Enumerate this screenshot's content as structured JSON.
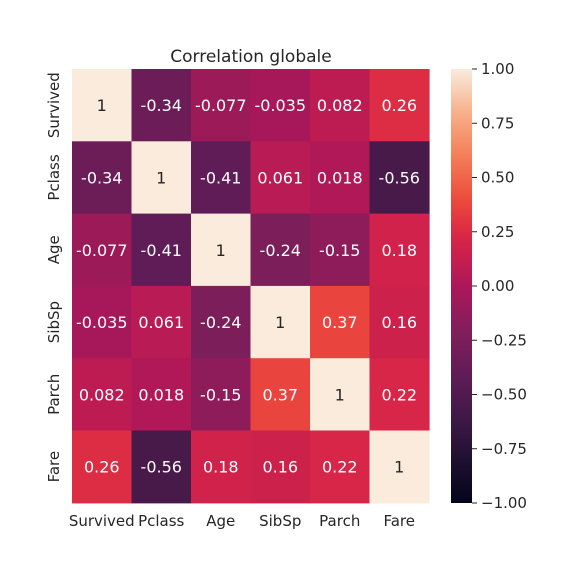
{
  "chart_data": {
    "type": "heatmap",
    "title": "Correlation globale",
    "xlabel": "",
    "ylabel": "",
    "row_labels": [
      "Survived",
      "Pclass",
      "Age",
      "SibSp",
      "Parch",
      "Fare"
    ],
    "col_labels": [
      "Survived",
      "Pclass",
      "Age",
      "SibSp",
      "Parch",
      "Fare"
    ],
    "values": [
      [
        1,
        -0.34,
        -0.077,
        -0.035,
        0.082,
        0.26
      ],
      [
        -0.34,
        1,
        -0.41,
        0.061,
        0.018,
        -0.56
      ],
      [
        -0.077,
        -0.41,
        1,
        -0.24,
        -0.15,
        0.18
      ],
      [
        -0.035,
        0.061,
        -0.24,
        1,
        0.37,
        0.16
      ],
      [
        0.082,
        0.018,
        -0.15,
        0.37,
        1,
        0.22
      ],
      [
        0.26,
        -0.56,
        0.18,
        0.16,
        0.22,
        1
      ]
    ],
    "value_labels": [
      [
        "1",
        "-0.34",
        "-0.077",
        "-0.035",
        "0.082",
        "0.26"
      ],
      [
        "-0.34",
        "1",
        "-0.41",
        "0.061",
        "0.018",
        "-0.56"
      ],
      [
        "-0.077",
        "-0.41",
        "1",
        "-0.24",
        "-0.15",
        "0.18"
      ],
      [
        "-0.035",
        "0.061",
        "-0.24",
        "1",
        "0.37",
        "0.16"
      ],
      [
        "0.082",
        "0.018",
        "-0.15",
        "0.37",
        "1",
        "0.22"
      ],
      [
        "0.26",
        "-0.56",
        "0.18",
        "0.16",
        "0.22",
        "1"
      ]
    ],
    "colorbar": {
      "vmin": -1,
      "vmax": 1,
      "ticks": [
        1.0,
        0.75,
        0.5,
        0.25,
        0.0,
        -0.25,
        -0.5,
        -0.75,
        -1.0
      ],
      "tick_labels": [
        "1.00",
        "0.75",
        "0.50",
        "0.25",
        "0.00",
        "−0.25",
        "−0.50",
        "−0.75",
        "−1.00"
      ]
    },
    "colormap": "rocket",
    "annotation_color_light": "#ffffff",
    "annotation_color_dark": "#262626"
  }
}
